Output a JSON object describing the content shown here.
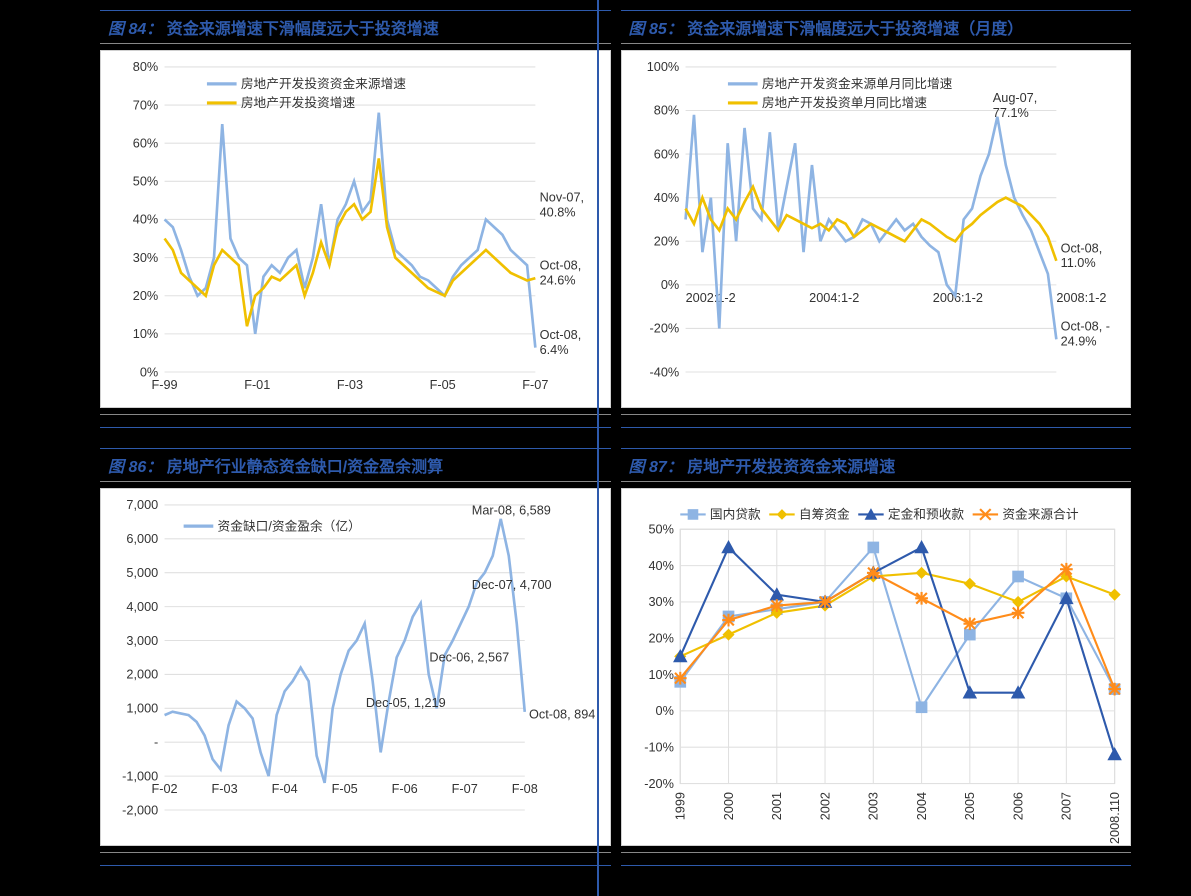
{
  "colors": {
    "background": "#000000",
    "title_color": "#2e5aac",
    "chart_bg": "#ffffff",
    "grid": "#e0e0e0",
    "text": "#333333",
    "series_blue_light": "#8eb4e3",
    "series_yellow": "#f0c000",
    "series_blue_dark": "#2e5aac",
    "series_orange": "#ff8c1a"
  },
  "chart84": {
    "type": "line",
    "title_prefix": "图 84：",
    "title": "资金来源增速下滑幅度远大于投资增速",
    "legend": [
      "房地产开发投资资金来源增速",
      "房地产开发投资增速"
    ],
    "x_ticks": [
      "F-99",
      "F-01",
      "F-03",
      "F-05",
      "F-07"
    ],
    "y_ticks": [
      "0%",
      "10%",
      "20%",
      "30%",
      "40%",
      "50%",
      "60%",
      "70%",
      "80%"
    ],
    "ylim": [
      0,
      80
    ],
    "series1_color": "#8eb4e3",
    "series2_color": "#f0c000",
    "annotations": [
      {
        "label": "Nov-07,",
        "value": "40.8%"
      },
      {
        "label": "Oct-08,",
        "value": "24.6%"
      },
      {
        "label": "Oct-08,",
        "value": "6.4%"
      }
    ],
    "series1": [
      40,
      38,
      32,
      25,
      20,
      22,
      30,
      65,
      35,
      30,
      28,
      10,
      25,
      28,
      26,
      30,
      32,
      22,
      30,
      44,
      28,
      40,
      44,
      50,
      42,
      45,
      68,
      40,
      32,
      30,
      28,
      25,
      24,
      22,
      20,
      25,
      28,
      30,
      32,
      40,
      38,
      36,
      32,
      30,
      28,
      6.4
    ],
    "series2": [
      35,
      32,
      26,
      24,
      22,
      20,
      28,
      32,
      30,
      28,
      12,
      20,
      22,
      25,
      24,
      26,
      28,
      20,
      26,
      34,
      28,
      38,
      42,
      44,
      40,
      42,
      56,
      38,
      30,
      28,
      26,
      24,
      22,
      21,
      20,
      24,
      26,
      28,
      30,
      32,
      30,
      28,
      26,
      25,
      24,
      24.6
    ]
  },
  "chart85": {
    "type": "line",
    "title_prefix": "图 85：",
    "title": "资金来源增速下滑幅度远大于投资增速（月度）",
    "legend": [
      "房地产开发资金来源单月同比增速",
      "房地产开发投资单月同比增速"
    ],
    "x_ticks": [
      "2002:1-2",
      "2004:1-2",
      "2006:1-2",
      "2008:1-2"
    ],
    "y_ticks": [
      "-40%",
      "-20%",
      "0%",
      "20%",
      "40%",
      "60%",
      "80%",
      "100%"
    ],
    "ylim": [
      -40,
      100
    ],
    "series1_color": "#8eb4e3",
    "series2_color": "#f0c000",
    "annotations": [
      {
        "label": "Aug-07,",
        "value": "77.1%"
      },
      {
        "label": "Oct-08,",
        "value": "11.0%"
      },
      {
        "label": "Oct-08, -",
        "value": "24.9%"
      }
    ],
    "series1": [
      30,
      78,
      15,
      40,
      -20,
      65,
      20,
      72,
      35,
      30,
      70,
      25,
      45,
      65,
      15,
      55,
      20,
      30,
      25,
      20,
      22,
      30,
      28,
      20,
      25,
      30,
      25,
      28,
      22,
      18,
      15,
      0,
      -5,
      30,
      35,
      50,
      60,
      77.1,
      55,
      40,
      32,
      25,
      15,
      5,
      -25
    ],
    "series2": [
      35,
      28,
      40,
      30,
      25,
      35,
      30,
      38,
      45,
      35,
      30,
      25,
      32,
      30,
      28,
      26,
      28,
      25,
      30,
      28,
      22,
      25,
      28,
      26,
      24,
      22,
      20,
      25,
      30,
      28,
      25,
      22,
      20,
      25,
      28,
      32,
      35,
      38,
      40,
      38,
      36,
      32,
      28,
      22,
      11
    ]
  },
  "chart86": {
    "type": "line",
    "title_prefix": "图 86：",
    "title": "房地产行业静态资金缺口/资金盈余测算",
    "legend": [
      "资金缺口/资金盈余（亿）"
    ],
    "x_ticks": [
      "F-02",
      "F-03",
      "F-04",
      "F-05",
      "F-06",
      "F-07",
      "F-08"
    ],
    "y_ticks": [
      "-2,000",
      "-1,000",
      "-",
      "1,000",
      "2,000",
      "3,000",
      "4,000",
      "5,000",
      "6,000",
      "7,000"
    ],
    "ylim": [
      -2000,
      7000
    ],
    "series1_color": "#8eb4e3",
    "annotations": [
      {
        "label": "Mar-08,",
        "value": "6,589"
      },
      {
        "label": "Dec-07,",
        "value": "4,700"
      },
      {
        "label": "Dec-06,",
        "value": "2,567"
      },
      {
        "label": "Dec-05,",
        "value": "1,219"
      },
      {
        "label": "Oct-08,",
        "value": "894"
      }
    ],
    "series1": [
      800,
      900,
      850,
      800,
      600,
      200,
      -500,
      -800,
      500,
      1200,
      1000,
      700,
      -300,
      -1000,
      800,
      1500,
      1800,
      2200,
      1800,
      -400,
      -1200,
      1000,
      2000,
      2700,
      3000,
      3500,
      1800,
      -300,
      1200,
      2500,
      3000,
      3700,
      4100,
      2000,
      1000,
      2567,
      3000,
      3500,
      4000,
      4700,
      5000,
      5500,
      6589,
      5500,
      3500,
      894
    ]
  },
  "chart87": {
    "type": "line-marker",
    "title_prefix": "图 87：",
    "title": "房地产开发投资资金来源增速",
    "legend": [
      "国内贷款",
      "自筹资金",
      "定金和预收款",
      "资金来源合计"
    ],
    "x_ticks": [
      "1999",
      "2000",
      "2001",
      "2002",
      "2003",
      "2004",
      "2005",
      "2006",
      "2007",
      "2008.1\n10"
    ],
    "y_ticks": [
      "-20%",
      "-10%",
      "0%",
      "10%",
      "20%",
      "30%",
      "40%",
      "50%"
    ],
    "ylim": [
      -20,
      50
    ],
    "series_colors": [
      "#8eb4e3",
      "#f0c000",
      "#2e5aac",
      "#ff8c1a"
    ],
    "series_markers": [
      "square",
      "diamond",
      "triangle",
      "star"
    ],
    "series": {
      "domestic_loan": [
        8,
        26,
        28,
        30,
        45,
        1,
        21,
        37,
        31,
        6
      ],
      "self_raised": [
        15,
        21,
        27,
        29,
        37,
        38,
        35,
        30,
        37,
        32
      ],
      "deposit_adv": [
        15,
        45,
        32,
        30,
        38,
        45,
        5,
        5,
        31,
        -12
      ],
      "total": [
        9,
        25,
        29,
        30,
        38,
        31,
        24,
        27,
        39,
        6
      ]
    }
  }
}
